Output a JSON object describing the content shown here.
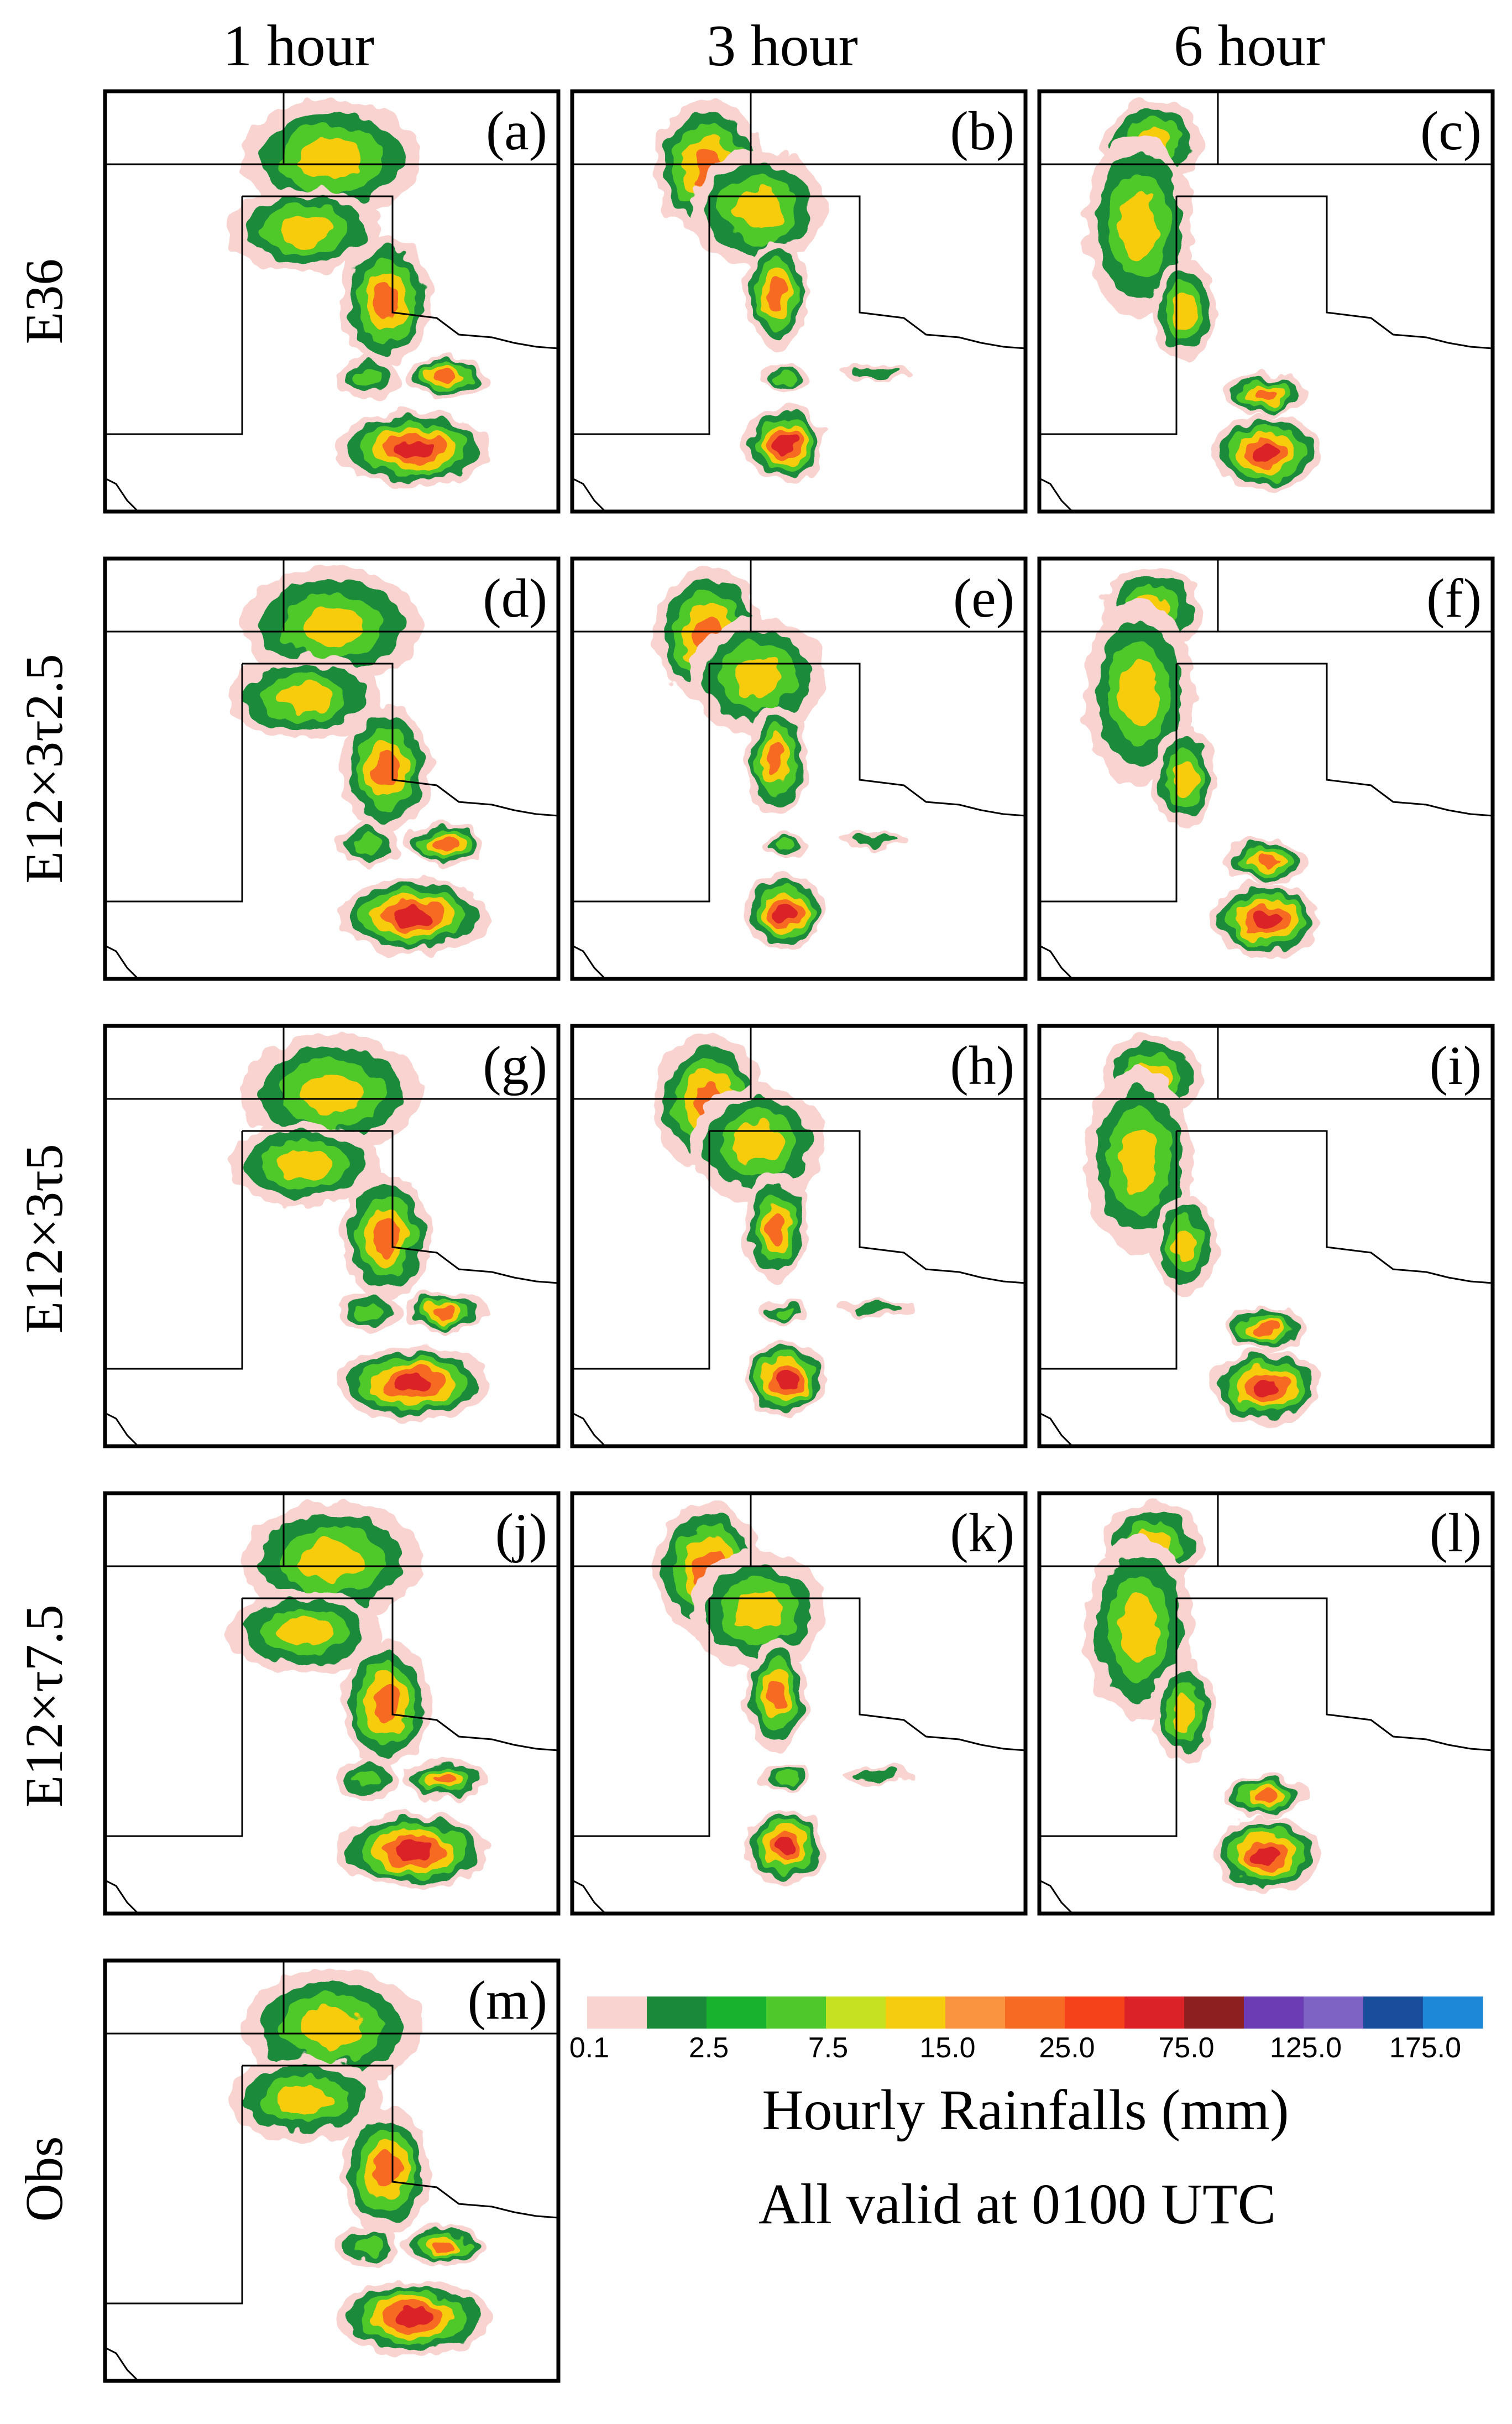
{
  "columns": [
    "1 hour",
    "3 hour",
    "6 hour"
  ],
  "rows": [
    "E36",
    "E12×3τ2.5",
    "E12×3τ5",
    "E12×τ7.5",
    "Obs"
  ],
  "panels": [
    {
      "label": "(a)",
      "row": 0,
      "col": 0,
      "cells": [
        [
          0.5,
          0.16,
          0.2,
          0.14,
          3
        ],
        [
          0.44,
          0.33,
          0.17,
          0.1,
          3
        ],
        [
          0.62,
          0.5,
          0.1,
          0.15,
          4
        ],
        [
          0.58,
          0.68,
          0.07,
          0.05,
          2
        ],
        [
          0.75,
          0.68,
          0.09,
          0.05,
          4
        ],
        [
          0.68,
          0.85,
          0.17,
          0.09,
          5
        ]
      ]
    },
    {
      "label": "(b)",
      "row": 0,
      "col": 1,
      "cells": [
        [
          0.3,
          0.18,
          0.12,
          0.16,
          4
        ],
        [
          0.41,
          0.28,
          0.15,
          0.14,
          3
        ],
        [
          0.45,
          0.48,
          0.07,
          0.13,
          4
        ],
        [
          0.47,
          0.68,
          0.05,
          0.03,
          2
        ],
        [
          0.67,
          0.67,
          0.08,
          0.02,
          1
        ],
        [
          0.47,
          0.84,
          0.09,
          0.09,
          5
        ]
      ]
    },
    {
      "label": "(c)",
      "row": 0,
      "col": 2,
      "cells": [
        [
          0.25,
          0.12,
          0.11,
          0.1,
          3
        ],
        [
          0.22,
          0.32,
          0.12,
          0.22,
          3
        ],
        [
          0.32,
          0.52,
          0.07,
          0.12,
          3
        ],
        [
          0.5,
          0.72,
          0.09,
          0.05,
          4
        ],
        [
          0.5,
          0.86,
          0.12,
          0.09,
          5
        ]
      ]
    },
    {
      "label": "(d)",
      "row": 1,
      "col": 0,
      "cells": [
        [
          0.5,
          0.16,
          0.2,
          0.14,
          3
        ],
        [
          0.44,
          0.33,
          0.17,
          0.1,
          3
        ],
        [
          0.62,
          0.5,
          0.1,
          0.15,
          4
        ],
        [
          0.58,
          0.68,
          0.07,
          0.05,
          2
        ],
        [
          0.75,
          0.68,
          0.09,
          0.05,
          4
        ],
        [
          0.68,
          0.85,
          0.17,
          0.09,
          5
        ]
      ]
    },
    {
      "label": "(e)",
      "row": 1,
      "col": 1,
      "cells": [
        [
          0.3,
          0.18,
          0.12,
          0.16,
          4
        ],
        [
          0.41,
          0.28,
          0.15,
          0.14,
          3
        ],
        [
          0.45,
          0.48,
          0.07,
          0.13,
          4
        ],
        [
          0.47,
          0.68,
          0.05,
          0.03,
          2
        ],
        [
          0.67,
          0.67,
          0.08,
          0.02,
          1
        ],
        [
          0.47,
          0.84,
          0.09,
          0.09,
          5
        ]
      ]
    },
    {
      "label": "(f)",
      "row": 1,
      "col": 2,
      "cells": [
        [
          0.25,
          0.12,
          0.11,
          0.1,
          3
        ],
        [
          0.22,
          0.32,
          0.12,
          0.22,
          3
        ],
        [
          0.32,
          0.52,
          0.07,
          0.12,
          3
        ],
        [
          0.5,
          0.72,
          0.09,
          0.05,
          4
        ],
        [
          0.5,
          0.86,
          0.12,
          0.09,
          5
        ]
      ]
    },
    {
      "label": "(g)",
      "row": 2,
      "col": 0,
      "cells": [
        [
          0.5,
          0.16,
          0.2,
          0.14,
          3
        ],
        [
          0.44,
          0.33,
          0.17,
          0.1,
          3
        ],
        [
          0.62,
          0.5,
          0.1,
          0.15,
          4
        ],
        [
          0.58,
          0.68,
          0.07,
          0.05,
          2
        ],
        [
          0.75,
          0.68,
          0.09,
          0.05,
          4
        ],
        [
          0.68,
          0.85,
          0.17,
          0.09,
          5
        ]
      ]
    },
    {
      "label": "(h)",
      "row": 2,
      "col": 1,
      "cells": [
        [
          0.3,
          0.18,
          0.12,
          0.16,
          4
        ],
        [
          0.41,
          0.28,
          0.15,
          0.14,
          3
        ],
        [
          0.45,
          0.48,
          0.07,
          0.13,
          4
        ],
        [
          0.47,
          0.68,
          0.05,
          0.03,
          2
        ],
        [
          0.67,
          0.67,
          0.08,
          0.02,
          1
        ],
        [
          0.47,
          0.84,
          0.09,
          0.09,
          5
        ]
      ]
    },
    {
      "label": "(i)",
      "row": 2,
      "col": 2,
      "cells": [
        [
          0.25,
          0.12,
          0.11,
          0.1,
          3
        ],
        [
          0.22,
          0.32,
          0.12,
          0.22,
          3
        ],
        [
          0.32,
          0.52,
          0.07,
          0.12,
          3
        ],
        [
          0.5,
          0.72,
          0.09,
          0.05,
          4
        ],
        [
          0.5,
          0.86,
          0.12,
          0.09,
          5
        ]
      ]
    },
    {
      "label": "(j)",
      "row": 3,
      "col": 0,
      "cells": [
        [
          0.5,
          0.16,
          0.2,
          0.14,
          3
        ],
        [
          0.44,
          0.33,
          0.17,
          0.1,
          3
        ],
        [
          0.62,
          0.5,
          0.1,
          0.15,
          4
        ],
        [
          0.58,
          0.68,
          0.07,
          0.05,
          2
        ],
        [
          0.75,
          0.68,
          0.09,
          0.05,
          4
        ],
        [
          0.68,
          0.85,
          0.17,
          0.09,
          5
        ]
      ]
    },
    {
      "label": "(k)",
      "row": 3,
      "col": 1,
      "cells": [
        [
          0.3,
          0.18,
          0.12,
          0.16,
          4
        ],
        [
          0.41,
          0.28,
          0.15,
          0.14,
          3
        ],
        [
          0.45,
          0.48,
          0.07,
          0.13,
          4
        ],
        [
          0.47,
          0.68,
          0.05,
          0.03,
          2
        ],
        [
          0.67,
          0.67,
          0.08,
          0.02,
          1
        ],
        [
          0.47,
          0.84,
          0.09,
          0.09,
          5
        ]
      ]
    },
    {
      "label": "(l)",
      "row": 3,
      "col": 2,
      "cells": [
        [
          0.25,
          0.12,
          0.11,
          0.1,
          3
        ],
        [
          0.22,
          0.32,
          0.12,
          0.22,
          3
        ],
        [
          0.32,
          0.52,
          0.07,
          0.12,
          3
        ],
        [
          0.5,
          0.72,
          0.09,
          0.05,
          4
        ],
        [
          0.5,
          0.86,
          0.12,
          0.09,
          5
        ]
      ]
    },
    {
      "label": "(m)",
      "row": 4,
      "col": 0,
      "cells": [
        [
          0.5,
          0.16,
          0.2,
          0.14,
          3
        ],
        [
          0.44,
          0.33,
          0.17,
          0.1,
          3
        ],
        [
          0.62,
          0.5,
          0.1,
          0.15,
          4
        ],
        [
          0.58,
          0.68,
          0.07,
          0.05,
          2
        ],
        [
          0.75,
          0.68,
          0.09,
          0.05,
          4
        ],
        [
          0.68,
          0.85,
          0.17,
          0.09,
          5
        ]
      ]
    }
  ],
  "colorbar": {
    "colors": [
      "#f8d3d0",
      "#1a8a3a",
      "#18b22e",
      "#4fc82c",
      "#c6e022",
      "#f6cc10",
      "#fb9440",
      "#f76a24",
      "#f5421a",
      "#db2228",
      "#8e1f21",
      "#6b3cb4",
      "#7e63c4",
      "#1a4e9c",
      "#1e88d8"
    ],
    "tick_labels": [
      "0.1",
      "2.5",
      "7.5",
      "15.0",
      "25.0",
      "75.0",
      "125.0",
      "175.0"
    ],
    "label": "Hourly Rainfalls (mm)"
  },
  "caption": "All valid at 0100 UTC"
}
